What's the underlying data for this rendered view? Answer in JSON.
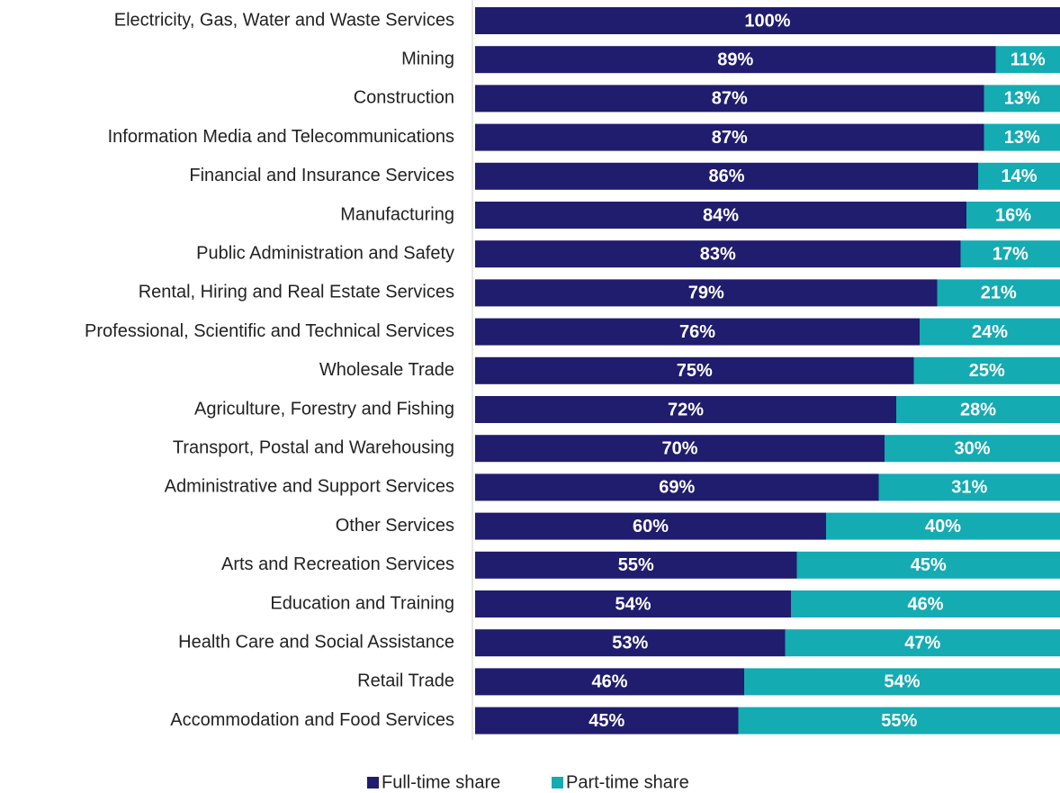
{
  "chart_data": {
    "type": "stacked-bar-horizontal",
    "categories": [
      "Electricity, Gas, Water and Waste Services",
      "Mining",
      "Construction",
      "Information Media and Telecommunications",
      "Financial and Insurance Services",
      "Manufacturing",
      "Public Administration and Safety",
      "Rental, Hiring and Real Estate Services",
      "Professional, Scientific and Technical Services",
      "Wholesale Trade",
      "Agriculture, Forestry and Fishing",
      "Transport, Postal and Warehousing",
      "Administrative and Support Services",
      "Other Services",
      "Arts and Recreation Services",
      "Education and Training",
      "Health Care and Social Assistance",
      "Retail Trade",
      "Accommodation and Food Services"
    ],
    "series": [
      {
        "name": "Full-time share",
        "color": "#201c6e",
        "values": [
          100,
          89,
          87,
          87,
          86,
          84,
          83,
          79,
          76,
          75,
          72,
          70,
          69,
          60,
          55,
          54,
          53,
          46,
          45
        ],
        "value_labels": [
          "100%",
          "89%",
          "87%",
          "87%",
          "86%",
          "84%",
          "83%",
          "79%",
          "76%",
          "75%",
          "72%",
          "70%",
          "69%",
          "60%",
          "55%",
          "54%",
          "53%",
          "46%",
          "45%"
        ]
      },
      {
        "name": "Part-time share",
        "color": "#14abb2",
        "values": [
          0,
          11,
          13,
          13,
          14,
          16,
          17,
          21,
          24,
          25,
          28,
          30,
          31,
          40,
          45,
          46,
          47,
          54,
          55
        ],
        "value_labels": [
          null,
          "11%",
          "13%",
          "13%",
          "14%",
          "16%",
          "17%",
          "21%",
          "24%",
          "25%",
          "28%",
          "30%",
          "31%",
          "40%",
          "45%",
          "46%",
          "47%",
          "54%",
          "55%"
        ]
      }
    ],
    "xlim": [
      0,
      100
    ],
    "legend": "bottom"
  }
}
